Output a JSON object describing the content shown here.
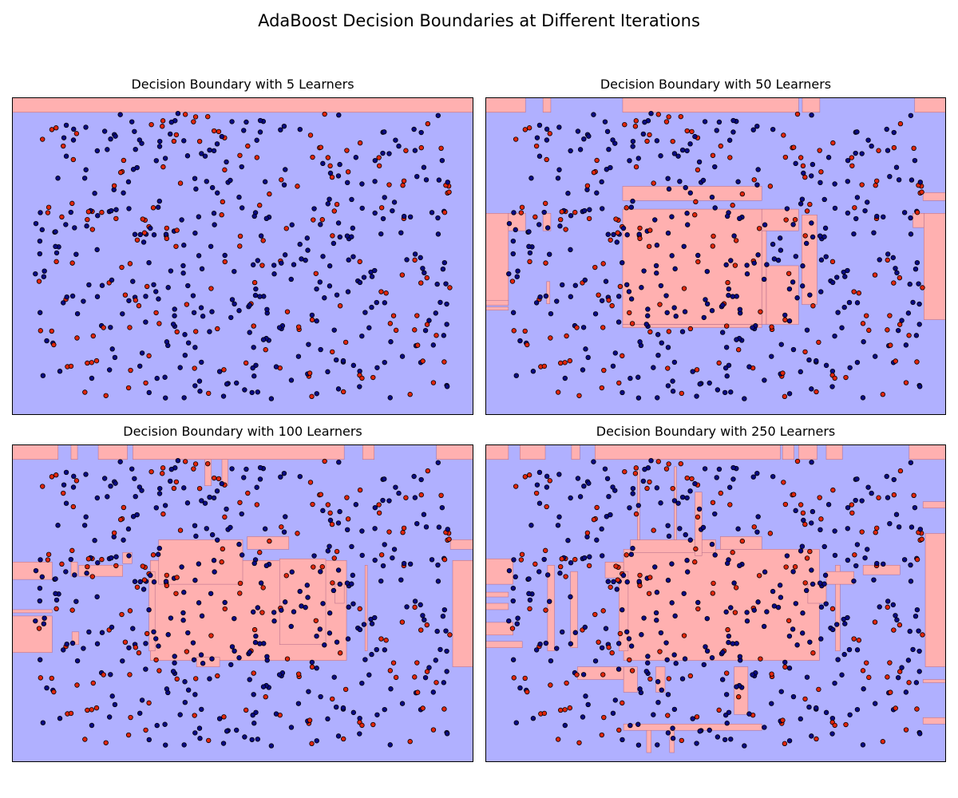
{
  "figure": {
    "title": "AdaBoost Decision Boundaries at Different Iterations"
  },
  "colors": {
    "region_red": "#ffb0b0",
    "region_blue": "#b0b0ff",
    "point_red": "#e0250b",
    "point_blue": "#0a0a85",
    "point_edge": "#000000",
    "frame": "#000000"
  },
  "chart_data": [
    {
      "type": "scatter",
      "title": "Decision Boundary with 5 Learners",
      "n_learners": 5,
      "xlim": [
        0,
        1
      ],
      "ylim": [
        0,
        1
      ],
      "axes_visible": false,
      "background_class": "blue",
      "red_regions": [
        [
          0.0,
          0.953,
          1.0,
          1.0
        ]
      ]
    },
    {
      "type": "scatter",
      "title": "Decision Boundary with 50 Learners",
      "n_learners": 50,
      "xlim": [
        0,
        1
      ],
      "ylim": [
        0,
        1
      ],
      "axes_visible": false,
      "background_class": "blue",
      "red_regions": [
        [
          0.0,
          0.953,
          0.087,
          1.0
        ],
        [
          0.125,
          0.953,
          0.142,
          1.0
        ],
        [
          0.298,
          0.953,
          0.68,
          1.0
        ],
        [
          0.688,
          0.953,
          0.726,
          1.0
        ],
        [
          0.932,
          0.953,
          1.0,
          1.0
        ],
        [
          0.298,
          0.675,
          0.6,
          0.72
        ],
        [
          0.298,
          0.285,
          0.6,
          0.648
        ],
        [
          0.6,
          0.58,
          0.68,
          0.648
        ],
        [
          0.6,
          0.285,
          0.61,
          0.58
        ],
        [
          0.61,
          0.285,
          0.68,
          0.47
        ],
        [
          0.687,
          0.348,
          0.72,
          0.63
        ],
        [
          0.298,
          0.275,
          0.6,
          0.285
        ],
        [
          0.0,
          0.347,
          0.05,
          0.635
        ],
        [
          0.05,
          0.58,
          0.087,
          0.635
        ],
        [
          0.125,
          0.58,
          0.142,
          0.635
        ],
        [
          0.0,
          0.345,
          0.05,
          0.36
        ],
        [
          0.0,
          0.33,
          0.05,
          0.34
        ],
        [
          0.133,
          0.35,
          0.14,
          0.42
        ],
        [
          0.95,
          0.675,
          1.0,
          0.7
        ],
        [
          0.952,
          0.3,
          1.0,
          0.635
        ],
        [
          0.928,
          0.59,
          0.952,
          0.635
        ]
      ]
    },
    {
      "type": "scatter",
      "title": "Decision Boundary with 100 Learners",
      "n_learners": 100,
      "xlim": [
        0,
        1
      ],
      "ylim": [
        0,
        1
      ],
      "axes_visible": false,
      "background_class": "blue",
      "red_regions": [
        [
          0.0,
          0.953,
          0.1,
          1.0
        ],
        [
          0.128,
          0.953,
          0.142,
          1.0
        ],
        [
          0.187,
          0.953,
          0.25,
          1.0
        ],
        [
          0.262,
          0.953,
          0.72,
          1.0
        ],
        [
          0.76,
          0.953,
          0.785,
          1.0
        ],
        [
          0.92,
          0.953,
          1.0,
          1.0
        ],
        [
          0.418,
          0.87,
          0.432,
          0.953
        ],
        [
          0.455,
          0.87,
          0.468,
          0.953
        ],
        [
          0.3,
          0.32,
          0.725,
          0.635
        ],
        [
          0.297,
          0.35,
          0.31,
          0.6
        ],
        [
          0.318,
          0.56,
          0.5,
          0.7
        ],
        [
          0.51,
          0.67,
          0.6,
          0.71
        ],
        [
          0.58,
          0.37,
          0.68,
          0.64
        ],
        [
          0.4,
          0.3,
          0.45,
          0.33
        ],
        [
          0.0,
          0.345,
          0.087,
          0.46
        ],
        [
          0.0,
          0.575,
          0.087,
          0.63
        ],
        [
          0.0,
          0.47,
          0.087,
          0.48
        ],
        [
          0.128,
          0.585,
          0.142,
          0.63
        ],
        [
          0.145,
          0.585,
          0.24,
          0.62
        ],
        [
          0.765,
          0.35,
          0.77,
          0.62
        ],
        [
          0.955,
          0.3,
          1.0,
          0.635
        ],
        [
          0.95,
          0.67,
          1.0,
          0.7
        ],
        [
          0.13,
          0.37,
          0.145,
          0.41
        ],
        [
          0.24,
          0.625,
          0.26,
          0.66
        ],
        [
          0.7,
          0.5,
          0.72,
          0.56
        ]
      ]
    },
    {
      "type": "scatter",
      "title": "Decision Boundary with 250 Learners",
      "n_learners": 250,
      "xlim": [
        0,
        1
      ],
      "ylim": [
        0,
        1
      ],
      "axes_visible": false,
      "background_class": "blue",
      "red_regions": [
        [
          0.0,
          0.953,
          0.05,
          1.0
        ],
        [
          0.075,
          0.953,
          0.13,
          1.0
        ],
        [
          0.187,
          0.953,
          0.205,
          1.0
        ],
        [
          0.238,
          0.953,
          0.64,
          1.0
        ],
        [
          0.645,
          0.953,
          0.67,
          1.0
        ],
        [
          0.68,
          0.953,
          0.72,
          1.0
        ],
        [
          0.74,
          0.953,
          0.775,
          1.0
        ],
        [
          0.92,
          0.953,
          1.0,
          1.0
        ],
        [
          0.3,
          0.32,
          0.725,
          0.67
        ],
        [
          0.29,
          0.35,
          0.31,
          0.6
        ],
        [
          0.26,
          0.58,
          0.3,
          0.63
        ],
        [
          0.315,
          0.66,
          0.5,
          0.7
        ],
        [
          0.33,
          0.7,
          0.335,
          0.92
        ],
        [
          0.41,
          0.7,
          0.415,
          0.93
        ],
        [
          0.455,
          0.65,
          0.47,
          0.85
        ],
        [
          0.51,
          0.67,
          0.6,
          0.71
        ],
        [
          0.35,
          0.03,
          0.36,
          0.1
        ],
        [
          0.4,
          0.03,
          0.41,
          0.1
        ],
        [
          0.3,
          0.1,
          0.6,
          0.12
        ],
        [
          0.3,
          0.22,
          0.33,
          0.3
        ],
        [
          0.37,
          0.22,
          0.39,
          0.3
        ],
        [
          0.54,
          0.15,
          0.57,
          0.3
        ],
        [
          0.0,
          0.56,
          0.06,
          0.64
        ],
        [
          0.0,
          0.48,
          0.05,
          0.5
        ],
        [
          0.0,
          0.4,
          0.06,
          0.44
        ],
        [
          0.0,
          0.36,
          0.08,
          0.38
        ],
        [
          0.0,
          0.52,
          0.05,
          0.535
        ],
        [
          0.135,
          0.35,
          0.15,
          0.62
        ],
        [
          0.185,
          0.36,
          0.2,
          0.6
        ],
        [
          0.76,
          0.35,
          0.77,
          0.62
        ],
        [
          0.955,
          0.3,
          1.0,
          0.72
        ],
        [
          0.95,
          0.8,
          1.0,
          0.82
        ],
        [
          0.95,
          0.12,
          1.0,
          0.14
        ],
        [
          0.95,
          0.25,
          1.0,
          0.26
        ],
        [
          0.7,
          0.5,
          0.74,
          0.56
        ],
        [
          0.74,
          0.56,
          0.8,
          0.6
        ],
        [
          0.82,
          0.59,
          0.9,
          0.62
        ],
        [
          0.2,
          0.26,
          0.3,
          0.3
        ]
      ]
    }
  ]
}
